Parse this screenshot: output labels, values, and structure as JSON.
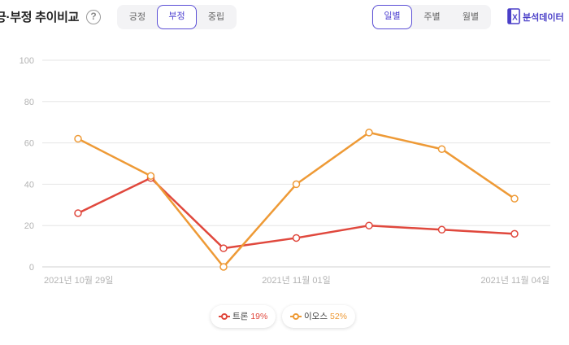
{
  "header": {
    "title": "긍·부정 추이비교",
    "help_icon": "?",
    "sentiment_tabs": [
      {
        "label": "긍정",
        "active": false
      },
      {
        "label": "부정",
        "active": true
      },
      {
        "label": "중립",
        "active": false
      }
    ],
    "period_tabs": [
      {
        "label": "일별",
        "active": true
      },
      {
        "label": "주별",
        "active": false
      },
      {
        "label": "월별",
        "active": false
      }
    ],
    "export": {
      "label": "분석데이터",
      "icon": "excel-icon",
      "icon_glyph": "X"
    }
  },
  "colors": {
    "accent": "#5b4fd6",
    "series_1": "#e0483d",
    "series_2": "#ee9a36",
    "grid": "#e6e6e6",
    "axis_text": "#b3b3b3"
  },
  "chart_data": {
    "type": "line",
    "y_ticks": [
      "100",
      "80",
      "60",
      "40",
      "20",
      "0"
    ],
    "ylim": [
      0,
      100
    ],
    "x": [
      "2021-10-29",
      "2021-10-30",
      "2021-10-31",
      "2021-11-01",
      "2021-11-02",
      "2021-11-03",
      "2021-11-04"
    ],
    "x_tick_labels": [
      {
        "label": "2021년 10월 29일",
        "at": "2021-10-29"
      },
      {
        "label": "2021년 11월 01일",
        "at": "2021-11-01"
      },
      {
        "label": "2021년 11월 04일",
        "at": "2021-11-04"
      }
    ],
    "grid": true,
    "legend_position": "bottom-center",
    "series": [
      {
        "name": "트론",
        "percent": "19%",
        "color": "#e0483d",
        "values": [
          26,
          43,
          9,
          14,
          20,
          18,
          16
        ]
      },
      {
        "name": "이오스",
        "percent": "52%",
        "color": "#ee9a36",
        "values": [
          62,
          44,
          0,
          40,
          65,
          57,
          33
        ]
      }
    ]
  }
}
